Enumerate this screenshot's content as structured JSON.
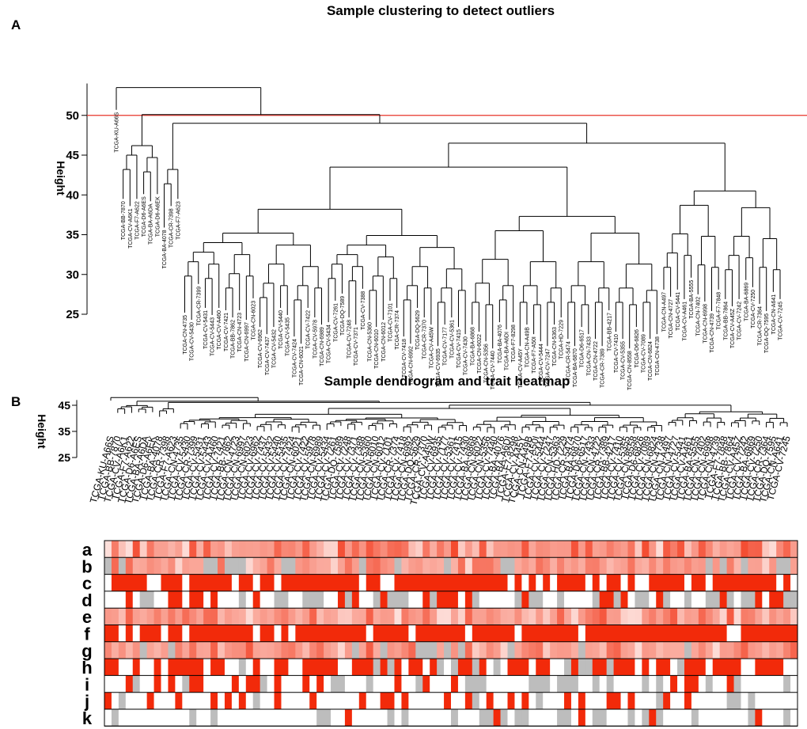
{
  "chart_data": [
    {
      "type": "dendrogram",
      "panel": "A",
      "title": "Sample clustering to detect outliers",
      "ylabel": "Height",
      "yticks": [
        25,
        30,
        35,
        40,
        45,
        50
      ],
      "ylim": [
        25,
        54
      ],
      "cut_line": {
        "value": 50,
        "color": "#e8352a"
      },
      "leaves": [
        "TCGA-KU-A66S",
        "TCGA-BB-7870",
        "TCGA-CV-A6K1",
        "TCGA-F7-A622",
        "TCGA-D6-A6ES",
        "TCGA-BA-A6DA",
        "TCGA-D6-A6EK",
        "TCGA-BA-4078",
        "TCGA-CR-7398",
        "TCGA-F7-A623",
        "TCGA-CN-4735",
        "TCGA-CV-5430",
        "TCGA-CR-7399",
        "TCGA-CV-5431",
        "TCGA-CV-5443",
        "TCGA-CV-A460",
        "TCGA-CV-7421",
        "TCGA-BB-7862",
        "TCGA-CN-4723",
        "TCGA-CN-6997",
        "TCGA-CN-6023",
        "TCGA-CV-6962",
        "TCGA-CV-7437",
        "TCGA-CV-5432",
        "TCGA-CV-5440",
        "TCGA-CV-5435",
        "TCGA-CV-7424",
        "TCGA-CN-6021",
        "TCGA-CV-7422",
        "TCGA-CV-5978",
        "TCGA-CN-6989",
        "TCGA-CV-5434",
        "TCGA-CV-7261",
        "TCGA-DQ-7589",
        "TCGA-CV-7248",
        "TCGA-CV-7371",
        "TCGA-CV-7388",
        "TCGA-CN-5360",
        "TCGA-CN-6010",
        "TCGA-CN-6012",
        "TCGA-CV-7101",
        "TCGA-CR-7374",
        "TCGA-CV-7418",
        "TCGA-CN-6992",
        "TCGA-DQ-5629",
        "TCGA-CR-7370",
        "TCGA-CV-A45W",
        "TCGA-CV-6935",
        "TCGA-CV-7177",
        "TCGA-CV-5361",
        "TCGA-CV-7415",
        "TCGA-CV-7430",
        "TCGA-BA-6868",
        "TCGA-CN-6022",
        "TCGA-CN-5356",
        "TCGA-CV-7440",
        "TCGA-BA-4076",
        "TCGA-BA-A6DI",
        "TCGA-F7-8298",
        "TCGA-CV-A45Y",
        "TCGA-CN-A49B",
        "TCGA-F7-A50I",
        "TCGA-CV-5444",
        "TCGA-CV-7247",
        "TCGA-CN-5363",
        "TCGA-HD-7229",
        "TCGA-CR-5474",
        "TCGA-BA-6870",
        "TCGA-D6-6517",
        "TCGA-CN-7433",
        "TCGA-CN-4722",
        "TCGA-CR-7389",
        "TCGA-BB-4217",
        "TCGA-CV-7410",
        "TCGA-CV-5355",
        "TCGA-CN-8558",
        "TCGA-D6-6826",
        "TCGA-CV-7089",
        "TCGA-CN-6824",
        "TCGA-CN-4738",
        "TCGA-CN-A497",
        "TCGA-CN-4727",
        "TCGA-CV-5441",
        "TCGA-CV-A461",
        "TCGA-BA-5555",
        "TCGA-CN-7402",
        "TCGA-CN-6998",
        "TCGA-CN-4739",
        "TCGA-F7-7848",
        "TCGA-BB-7864",
        "TCGA-CV-A45Z",
        "TCGA-CV-7242",
        "TCGA-BA-6869",
        "TCGA-CV-7250",
        "TCGA-CR-7364",
        "TCGA-DQ-7595",
        "TCGA-CN-A641",
        "TCGA-CV-7245"
      ]
    },
    {
      "type": "dendrogram_heatmap",
      "panel": "B",
      "title": "Sample dendrogram and trait heatmap",
      "ylabel": "Height",
      "yticks": [
        25,
        35,
        45
      ],
      "traits": [
        "a",
        "b",
        "c",
        "d",
        "e",
        "f",
        "g",
        "h",
        "i",
        "j",
        "k"
      ],
      "colors": {
        "high": "#f22a0a",
        "low": "#ffffff",
        "missing": "#bdbdbd"
      }
    }
  ]
}
